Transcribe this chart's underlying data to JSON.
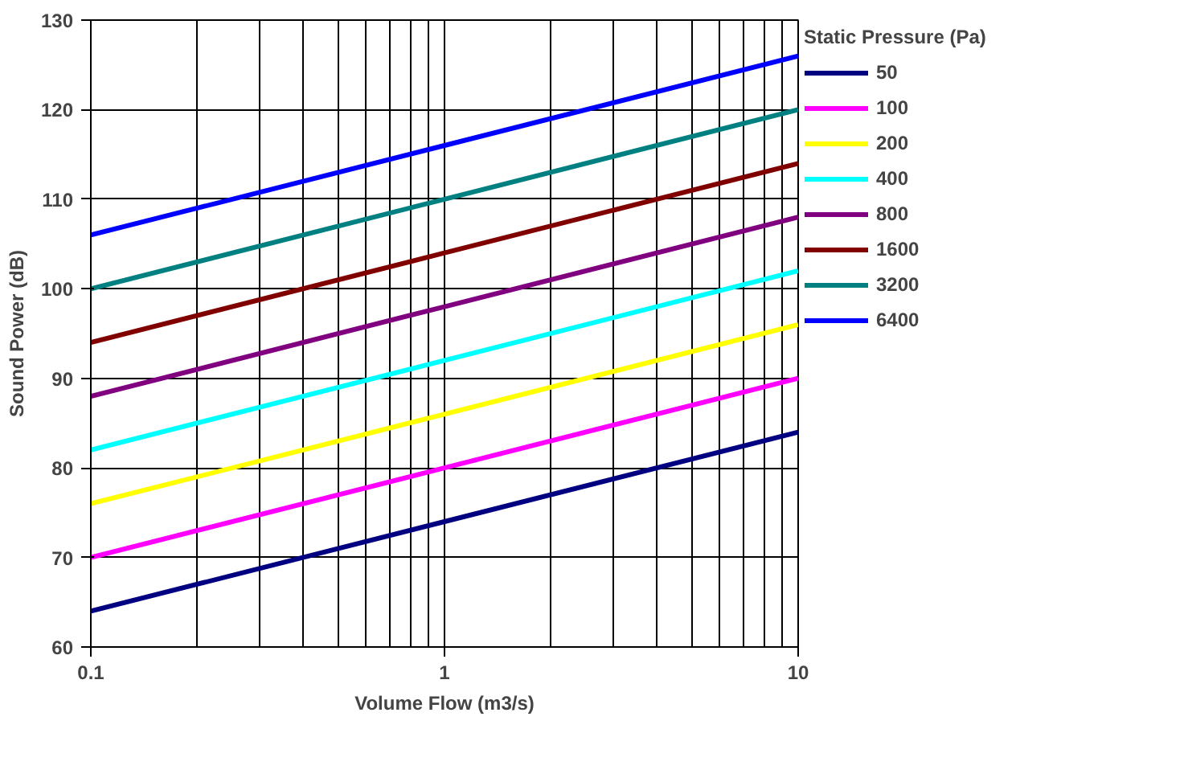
{
  "chart_data": {
    "type": "line",
    "xlabel": "Volume Flow (m3/s)",
    "ylabel": "Sound Power (dB)",
    "legend_title": "Static Pressure (Pa)",
    "log": "x",
    "grid": true,
    "legend": "right",
    "marker": "none",
    "line_style": "solid",
    "x": [
      0.1,
      1,
      10
    ],
    "xlim": [
      0.1,
      10
    ],
    "xticks": [
      0.1,
      1,
      10
    ],
    "ylim": [
      60,
      130
    ],
    "yticks": [
      60,
      70,
      80,
      90,
      100,
      110,
      120,
      130
    ],
    "series": [
      {
        "name": "50",
        "color": "#000080",
        "values": [
          64,
          74,
          84
        ]
      },
      {
        "name": "100",
        "color": "#ff00ff",
        "values": [
          70,
          80,
          90
        ]
      },
      {
        "name": "200",
        "color": "#ffff00",
        "values": [
          76,
          86,
          96
        ]
      },
      {
        "name": "400",
        "color": "#00ffff",
        "values": [
          82,
          92,
          102
        ]
      },
      {
        "name": "800",
        "color": "#800080",
        "values": [
          88,
          98,
          108
        ]
      },
      {
        "name": "1600",
        "color": "#800000",
        "values": [
          94,
          104,
          114
        ]
      },
      {
        "name": "3200",
        "color": "#008080",
        "values": [
          100,
          110,
          120
        ]
      },
      {
        "name": "6400",
        "color": "#0000ff",
        "values": [
          106,
          116,
          126
        ]
      }
    ]
  }
}
